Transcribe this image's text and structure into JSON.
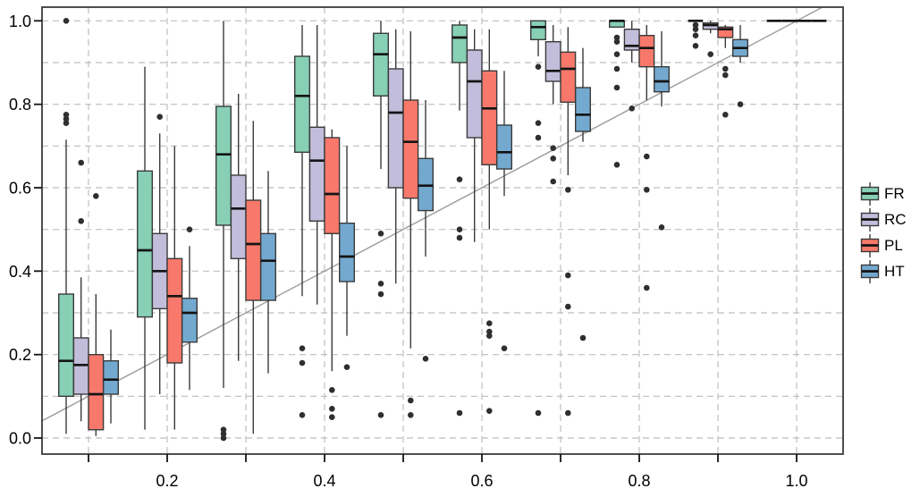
{
  "chart_data": {
    "type": "boxplot",
    "title": "",
    "x_axis": {
      "label": "",
      "tick_values": [
        0.1,
        0.2,
        0.3,
        0.4,
        0.5,
        0.6,
        0.7,
        0.8,
        0.9,
        1.0
      ],
      "label_values": [
        0.2,
        0.4,
        0.6,
        0.8,
        1.0
      ],
      "labels": [
        "0.2",
        "0.4",
        "0.6",
        "0.8",
        "1.0"
      ],
      "grid_values": [
        0.1,
        0.2,
        0.3,
        0.4,
        0.5,
        0.6,
        0.7,
        0.8,
        0.9,
        1.0
      ],
      "range": [
        0.041,
        1.059
      ]
    },
    "y_axis": {
      "label": "",
      "tick_values": [
        0.0,
        0.2,
        0.4,
        0.6,
        0.8,
        1.0
      ],
      "labels": [
        "0.0",
        "0.2",
        "0.4",
        "0.6",
        "0.8",
        "1.0"
      ],
      "grid_values": [
        0.0,
        0.1,
        0.2,
        0.3,
        0.4,
        0.5,
        0.6,
        0.7,
        0.8,
        0.9,
        1.0
      ],
      "range": [
        -0.039,
        1.033
      ]
    },
    "reference_line": {
      "type": "identity",
      "description": "y = x diagonal",
      "color": "#9b9b9b"
    },
    "grid": true,
    "legend_position": "right",
    "series": [
      {
        "name": "FR",
        "color": "#87D0B5"
      },
      {
        "name": "RC",
        "color": "#C2BDDA"
      },
      {
        "name": "PL",
        "color": "#F8796B"
      },
      {
        "name": "HT",
        "color": "#74A9CF"
      }
    ],
    "groups": [
      {
        "x": 0.1,
        "stats": [
          [
            0.01,
            0.1,
            0.185,
            0.345,
            0.715
          ],
          [
            0.04,
            0.105,
            0.175,
            0.24,
            0.385
          ],
          [
            0.005,
            0.02,
            0.105,
            0.2,
            0.345
          ],
          [
            0.035,
            0.105,
            0.14,
            0.185,
            0.26
          ]
        ],
        "outliers": [
          [
            0.755,
            0.765,
            0.775,
            1.0
          ],
          [
            0.52,
            0.66
          ],
          [
            0.58
          ],
          []
        ]
      },
      {
        "x": 0.2,
        "stats": [
          [
            0.02,
            0.29,
            0.45,
            0.64,
            0.89
          ],
          [
            0.105,
            0.31,
            0.4,
            0.49,
            0.73
          ],
          [
            0.02,
            0.18,
            0.34,
            0.43,
            0.7
          ],
          [
            0.115,
            0.23,
            0.3,
            0.335,
            0.46
          ]
        ],
        "outliers": [
          [],
          [
            0.77
          ],
          [],
          [
            0.5
          ]
        ]
      },
      {
        "x": 0.3,
        "stats": [
          [
            0.12,
            0.51,
            0.68,
            0.795,
            1.0
          ],
          [
            0.185,
            0.43,
            0.55,
            0.63,
            0.825
          ],
          [
            0.01,
            0.33,
            0.465,
            0.57,
            0.76
          ],
          [
            0.155,
            0.33,
            0.425,
            0.49,
            0.64
          ]
        ],
        "outliers": [
          [
            0.0,
            0.01,
            0.02
          ],
          [],
          [],
          []
        ]
      },
      {
        "x": 0.4,
        "stats": [
          [
            0.34,
            0.685,
            0.82,
            0.915,
            0.99
          ],
          [
            0.32,
            0.52,
            0.665,
            0.745,
            0.99
          ],
          [
            0.16,
            0.49,
            0.585,
            0.72,
            0.74
          ],
          [
            0.245,
            0.375,
            0.435,
            0.515,
            0.7
          ]
        ],
        "outliers": [
          [
            0.055,
            0.18,
            0.215
          ],
          [],
          [
            0.05,
            0.07,
            0.115
          ],
          [
            0.17
          ]
        ]
      },
      {
        "x": 0.5,
        "stats": [
          [
            0.645,
            0.82,
            0.92,
            0.97,
            1.0
          ],
          [
            0.37,
            0.6,
            0.78,
            0.885,
            0.98
          ],
          [
            0.215,
            0.575,
            0.71,
            0.81,
            0.975
          ],
          [
            0.435,
            0.545,
            0.605,
            0.67,
            0.81
          ]
        ],
        "outliers": [
          [
            0.055,
            0.345,
            0.37,
            0.49
          ],
          [],
          [
            0.055,
            0.09
          ],
          [
            0.19
          ]
        ]
      },
      {
        "x": 0.6,
        "stats": [
          [
            0.785,
            0.9,
            0.96,
            0.99,
            1.0
          ],
          [
            0.47,
            0.72,
            0.855,
            0.93,
            0.98
          ],
          [
            0.5,
            0.655,
            0.79,
            0.88,
            0.98
          ],
          [
            0.58,
            0.645,
            0.685,
            0.75,
            0.88
          ]
        ],
        "outliers": [
          [
            0.06,
            0.48,
            0.5,
            0.62
          ],
          [],
          [
            0.065,
            0.245,
            0.255,
            0.275
          ],
          [
            0.215
          ]
        ]
      },
      {
        "x": 0.7,
        "stats": [
          [
            0.915,
            0.955,
            0.985,
            1.0,
            1.0
          ],
          [
            0.8,
            0.855,
            0.88,
            0.95,
            0.99
          ],
          [
            0.63,
            0.805,
            0.885,
            0.925,
            0.985
          ],
          [
            0.71,
            0.735,
            0.775,
            0.84,
            0.935
          ]
        ],
        "outliers": [
          [
            0.06,
            0.72,
            0.755,
            0.89
          ],
          [
            0.615,
            0.67,
            0.695
          ],
          [
            0.06,
            0.315,
            0.39,
            0.595
          ],
          [
            0.24
          ]
        ]
      },
      {
        "x": 0.8,
        "stats": [
          [
            0.985,
            0.985,
            1.0,
            1.0,
            1.0
          ],
          [
            0.9,
            0.93,
            0.94,
            0.98,
            1.0
          ],
          [
            0.81,
            0.89,
            0.935,
            0.965,
            0.99
          ],
          [
            0.795,
            0.83,
            0.855,
            0.89,
            0.975
          ]
        ],
        "outliers": [
          [
            0.655,
            0.84,
            0.885,
            0.92,
            0.95,
            0.96
          ],
          [
            0.79
          ],
          [
            0.36,
            0.595,
            0.675
          ],
          [
            0.505
          ]
        ]
      },
      {
        "x": 0.9,
        "stats": [
          [
            1.0,
            1.0,
            1.0,
            1.0,
            1.0
          ],
          [
            0.97,
            0.98,
            0.99,
            0.995,
            1.0
          ],
          [
            0.935,
            0.96,
            0.98,
            0.985,
            0.99
          ],
          [
            0.9,
            0.915,
            0.935,
            0.955,
            0.99
          ]
        ],
        "outliers": [
          [
            0.94,
            0.965,
            0.98,
            0.99
          ],
          [
            0.92
          ],
          [
            0.775,
            0.87,
            0.885
          ],
          [
            0.8
          ]
        ]
      },
      {
        "x": 1.0,
        "stats": [
          [
            1.0,
            1.0,
            1.0,
            1.0,
            1.0
          ],
          [
            1.0,
            1.0,
            1.0,
            1.0,
            1.0
          ],
          [
            1.0,
            1.0,
            1.0,
            1.0,
            1.0
          ],
          [
            1.0,
            1.0,
            1.0,
            1.0,
            1.0
          ]
        ],
        "outliers": [
          [],
          [],
          [],
          []
        ]
      }
    ]
  },
  "legend": {
    "items": [
      {
        "label": "FR",
        "color": "#87D0B5"
      },
      {
        "label": "RC",
        "color": "#C2BDDA"
      },
      {
        "label": "PL",
        "color": "#F8796B"
      },
      {
        "label": "HT",
        "color": "#74A9CF"
      }
    ]
  },
  "styles": {
    "box_border": "#3b3b3b",
    "median": "#141414",
    "outlier": "#2f2f2f",
    "grid": "#bdbdbd",
    "axis": "#141414",
    "diagonal": "#9b9b9b",
    "background": "#ffffff"
  }
}
